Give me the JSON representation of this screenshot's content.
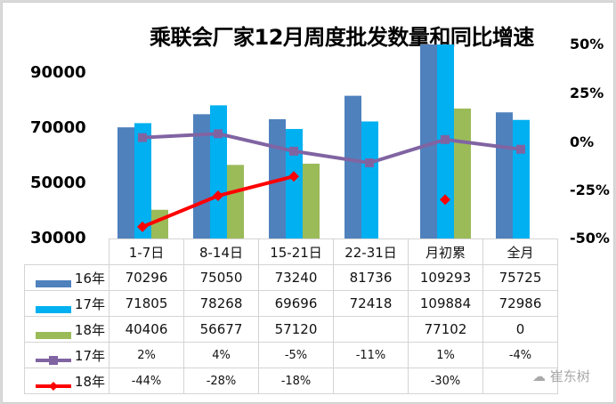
{
  "chart_data": {
    "type": "bar+line",
    "title": "乘联会厂家12月周度批发数量和同比增速",
    "categories": [
      "1-7日",
      "8-14日",
      "15-21日",
      "22-31日",
      "月初累",
      "全月"
    ],
    "left_axis": {
      "ticks": [
        "90000",
        "70000",
        "50000",
        "30000"
      ],
      "ylim": [
        30000,
        100000
      ]
    },
    "right_axis": {
      "ticks": [
        "50%",
        "25%",
        "0%",
        "-25%",
        "-50%"
      ],
      "ylim": [
        -50,
        50
      ]
    },
    "series": [
      {
        "name": "16年",
        "type": "bar",
        "color": "#4f81bd",
        "values": [
          70296,
          75050,
          73240,
          81736,
          109293,
          75725
        ],
        "labels": [
          "70296",
          "75050",
          "73240",
          "81736",
          "109293",
          "75725"
        ]
      },
      {
        "name": "17年",
        "type": "bar",
        "color": "#00b0f0",
        "values": [
          71805,
          78268,
          69696,
          72418,
          109884,
          72986
        ],
        "labels": [
          "71805",
          "78268",
          "69696",
          "72418",
          "109884",
          "72986"
        ]
      },
      {
        "name": "18年",
        "type": "bar",
        "color": "#9bbb59",
        "values": [
          40406,
          56677,
          57120,
          null,
          77102,
          0
        ],
        "labels": [
          "40406",
          "56677",
          "57120",
          "",
          "77102",
          "0"
        ]
      },
      {
        "name": "17年",
        "type": "line",
        "axis": "right",
        "color": "#8064a2",
        "marker": "square",
        "values": [
          2,
          4,
          -5,
          -11,
          1,
          -4
        ],
        "labels": [
          "2%",
          "4%",
          "-5%",
          "-11%",
          "1%",
          "-4%"
        ]
      },
      {
        "name": "18年",
        "type": "line",
        "axis": "right",
        "color": "#ff0000",
        "marker": "diamond",
        "values": [
          -44,
          -28,
          -18,
          null,
          -30,
          null
        ],
        "labels": [
          "-44%",
          "-28%",
          "-18%",
          "",
          "-30%",
          ""
        ]
      }
    ],
    "legend_position": "data-table"
  },
  "watermark": "崔东树"
}
